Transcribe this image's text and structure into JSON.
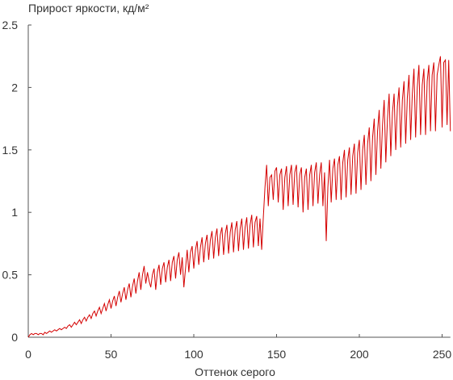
{
  "chart_data": {
    "type": "line",
    "title": "Прирост яркости, кд/м²",
    "x_label": "Оттенок серого",
    "xlim": [
      0,
      255
    ],
    "ylim": [
      0,
      2.5
    ],
    "xticks": [
      0,
      50,
      100,
      150,
      200,
      250
    ],
    "yticks": [
      0,
      0.5,
      1,
      1.5,
      2,
      2.5
    ],
    "grid": false,
    "x": [
      0,
      1,
      2,
      3,
      4,
      5,
      6,
      7,
      8,
      9,
      10,
      11,
      12,
      13,
      14,
      15,
      16,
      17,
      18,
      19,
      20,
      21,
      22,
      23,
      24,
      25,
      26,
      27,
      28,
      29,
      30,
      31,
      32,
      33,
      34,
      35,
      36,
      37,
      38,
      39,
      40,
      41,
      42,
      43,
      44,
      45,
      46,
      47,
      48,
      49,
      50,
      51,
      52,
      53,
      54,
      55,
      56,
      57,
      58,
      59,
      60,
      61,
      62,
      63,
      64,
      65,
      66,
      67,
      68,
      69,
      70,
      71,
      72,
      73,
      74,
      75,
      76,
      77,
      78,
      79,
      80,
      81,
      82,
      83,
      84,
      85,
      86,
      87,
      88,
      89,
      90,
      91,
      92,
      93,
      94,
      95,
      96,
      97,
      98,
      99,
      100,
      101,
      102,
      103,
      104,
      105,
      106,
      107,
      108,
      109,
      110,
      111,
      112,
      113,
      114,
      115,
      116,
      117,
      118,
      119,
      120,
      121,
      122,
      123,
      124,
      125,
      126,
      127,
      128,
      129,
      130,
      131,
      132,
      133,
      134,
      135,
      136,
      137,
      138,
      139,
      140,
      141,
      142,
      143,
      144,
      145,
      146,
      147,
      148,
      149,
      150,
      151,
      152,
      153,
      154,
      155,
      156,
      157,
      158,
      159,
      160,
      161,
      162,
      163,
      164,
      165,
      166,
      167,
      168,
      169,
      170,
      171,
      172,
      173,
      174,
      175,
      176,
      177,
      178,
      179,
      180,
      181,
      182,
      183,
      184,
      185,
      186,
      187,
      188,
      189,
      190,
      191,
      192,
      193,
      194,
      195,
      196,
      197,
      198,
      199,
      200,
      201,
      202,
      203,
      204,
      205,
      206,
      207,
      208,
      209,
      210,
      211,
      212,
      213,
      214,
      215,
      216,
      217,
      218,
      219,
      220,
      221,
      222,
      223,
      224,
      225,
      226,
      227,
      228,
      229,
      230,
      231,
      232,
      233,
      234,
      235,
      236,
      237,
      238,
      239,
      240,
      241,
      242,
      243,
      244,
      245,
      246,
      247,
      248,
      249,
      250,
      251,
      252,
      253,
      254,
      255
    ],
    "series": [
      {
        "color": "#d40000",
        "values": [
          0.0,
          0.02,
          0.03,
          0.02,
          0.03,
          0.03,
          0.02,
          0.03,
          0.03,
          0.02,
          0.04,
          0.03,
          0.04,
          0.05,
          0.04,
          0.05,
          0.06,
          0.05,
          0.06,
          0.07,
          0.06,
          0.07,
          0.08,
          0.07,
          0.09,
          0.1,
          0.08,
          0.1,
          0.12,
          0.1,
          0.12,
          0.14,
          0.11,
          0.14,
          0.16,
          0.13,
          0.16,
          0.18,
          0.15,
          0.19,
          0.21,
          0.17,
          0.21,
          0.24,
          0.19,
          0.23,
          0.27,
          0.21,
          0.26,
          0.3,
          0.23,
          0.29,
          0.33,
          0.25,
          0.32,
          0.37,
          0.28,
          0.35,
          0.4,
          0.3,
          0.38,
          0.43,
          0.32,
          0.41,
          0.47,
          0.35,
          0.45,
          0.52,
          0.38,
          0.5,
          0.57,
          0.43,
          0.52,
          0.45,
          0.4,
          0.5,
          0.55,
          0.38,
          0.52,
          0.58,
          0.42,
          0.55,
          0.6,
          0.44,
          0.56,
          0.62,
          0.45,
          0.6,
          0.65,
          0.47,
          0.62,
          0.68,
          0.5,
          0.64,
          0.4,
          0.55,
          0.7,
          0.52,
          0.68,
          0.73,
          0.55,
          0.7,
          0.77,
          0.58,
          0.72,
          0.8,
          0.6,
          0.75,
          0.82,
          0.62,
          0.78,
          0.85,
          0.63,
          0.8,
          0.87,
          0.65,
          0.82,
          0.88,
          0.66,
          0.83,
          0.9,
          0.67,
          0.84,
          0.92,
          0.68,
          0.86,
          0.93,
          0.69,
          0.87,
          0.95,
          0.7,
          0.88,
          0.96,
          0.71,
          0.9,
          0.98,
          0.72,
          0.92,
          0.97,
          0.73,
          0.95,
          0.7,
          0.96,
          1.2,
          1.38,
          1.05,
          1.28,
          1.3,
          1.1,
          1.33,
          1.36,
          1.08,
          1.3,
          1.35,
          1.02,
          1.28,
          1.37,
          1.05,
          1.3,
          1.38,
          1.06,
          1.32,
          1.38,
          1.04,
          1.3,
          1.36,
          1.0,
          1.28,
          1.35,
          1.02,
          1.3,
          1.38,
          1.05,
          1.32,
          1.4,
          1.07,
          1.3,
          1.4,
          1.05,
          1.32,
          0.77,
          1.2,
          1.42,
          1.08,
          1.35,
          1.43,
          1.1,
          1.38,
          1.45,
          1.1,
          1.4,
          1.5,
          1.12,
          1.42,
          1.52,
          1.14,
          1.45,
          1.55,
          1.15,
          1.48,
          1.58,
          1.18,
          1.5,
          1.62,
          1.22,
          1.55,
          1.68,
          1.25,
          1.6,
          1.75,
          1.3,
          1.65,
          1.82,
          1.35,
          1.7,
          1.9,
          1.4,
          1.75,
          1.95,
          1.45,
          1.8,
          1.95,
          1.5,
          1.85,
          2.0,
          1.52,
          1.9,
          2.05,
          1.55,
          1.92,
          2.1,
          1.58,
          1.95,
          2.15,
          1.6,
          2.0,
          2.18,
          1.62,
          2.02,
          2.15,
          1.62,
          2.05,
          2.18,
          1.65,
          2.1,
          2.2,
          1.65,
          2.1,
          2.18,
          2.25,
          1.68,
          2.2,
          2.22,
          1.7,
          2.22,
          1.65
        ]
      }
    ]
  }
}
